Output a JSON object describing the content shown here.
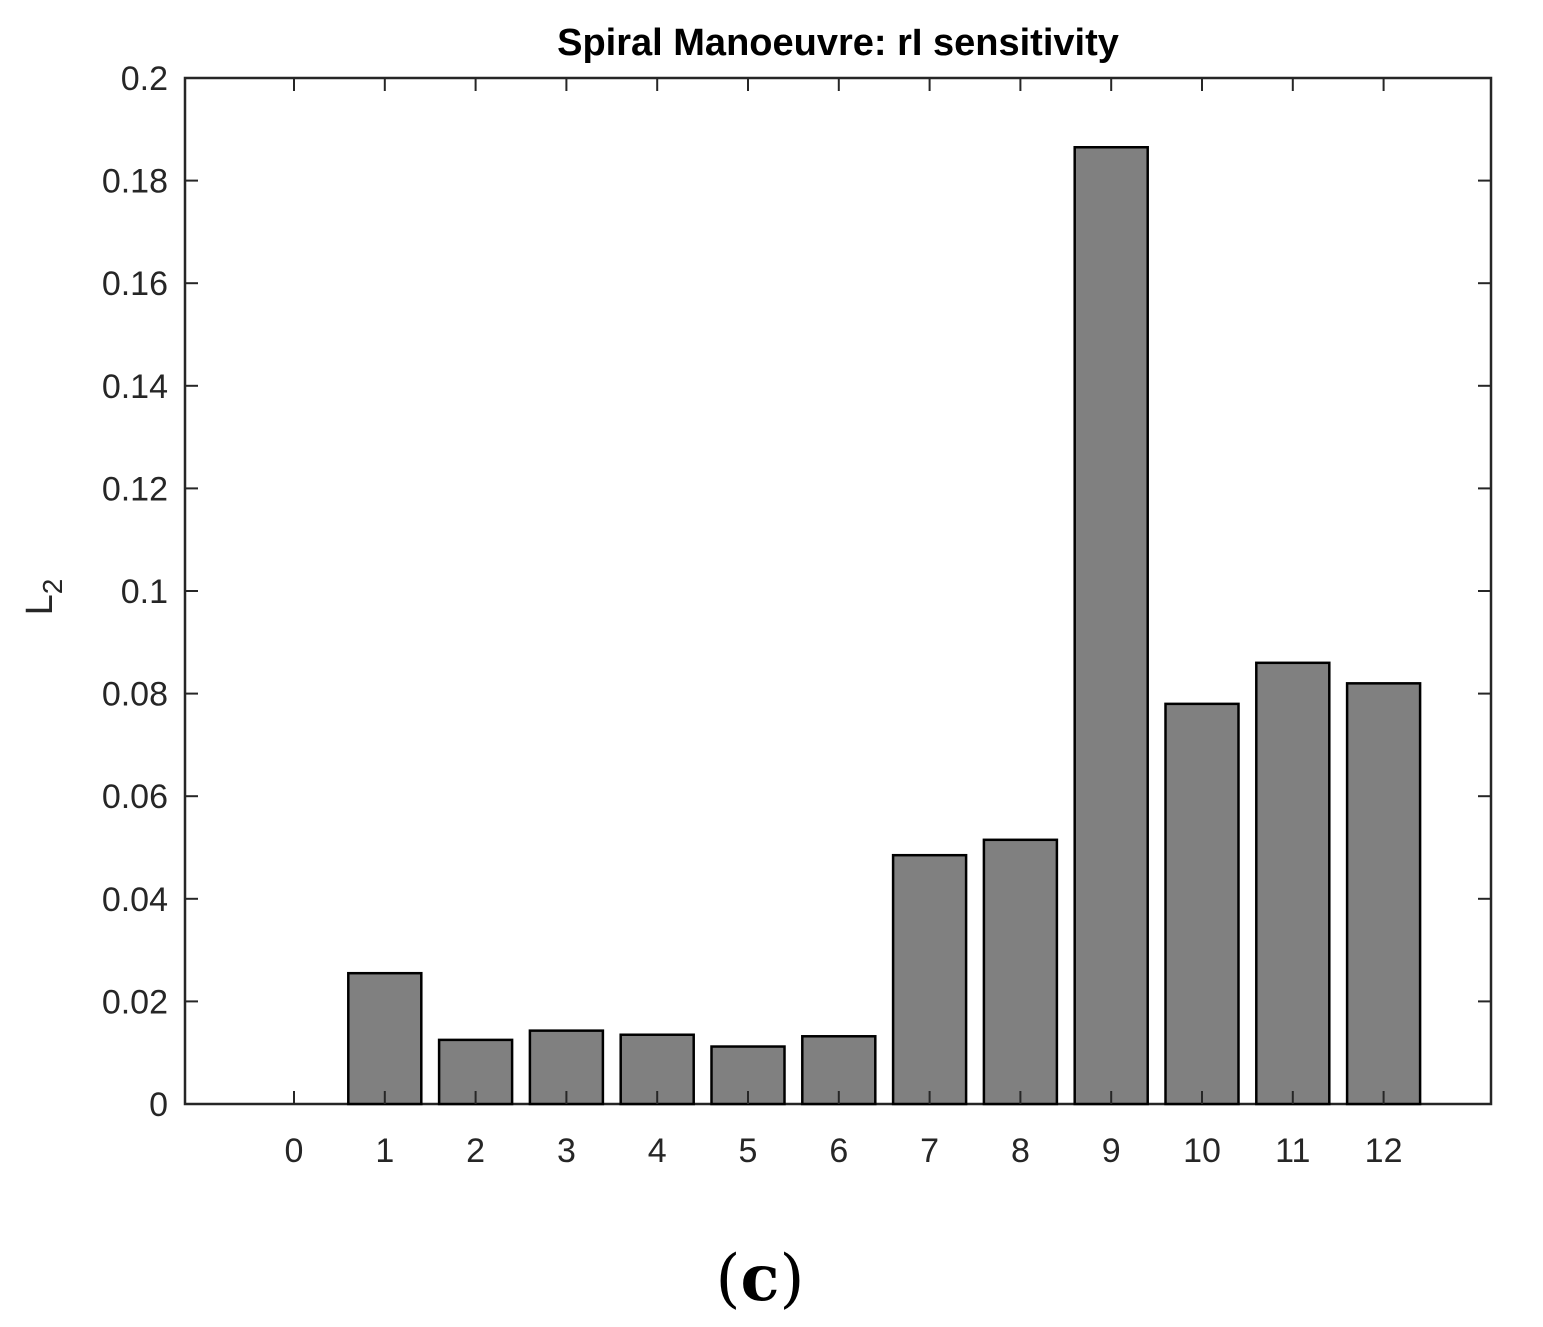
{
  "chart_data": {
    "type": "bar",
    "title": "Spiral Manoeuvre: rI sensitivity",
    "xlabel": "",
    "ylabel": "L",
    "ylabel_subscript": "2",
    "categories": [
      "0",
      "1",
      "2",
      "3",
      "4",
      "5",
      "6",
      "7",
      "8",
      "9",
      "10",
      "11",
      "12"
    ],
    "values": [
      0,
      0.0255,
      0.0125,
      0.0143,
      0.0135,
      0.0112,
      0.0132,
      0.0485,
      0.0515,
      0.1865,
      0.078,
      0.086,
      0.082
    ],
    "ylim": [
      0,
      0.2
    ],
    "yticks": [
      "0",
      "0.02",
      "0.04",
      "0.06",
      "0.08",
      "0.1",
      "0.12",
      "0.14",
      "0.16",
      "0.18",
      "0.2"
    ],
    "grid": false,
    "legend": "none",
    "bar_color": "#808080",
    "bar_edge_color": "#000000",
    "axis_color": "#262626"
  },
  "panel_label": {
    "open": "(",
    "letter": "c",
    "close": ")"
  }
}
